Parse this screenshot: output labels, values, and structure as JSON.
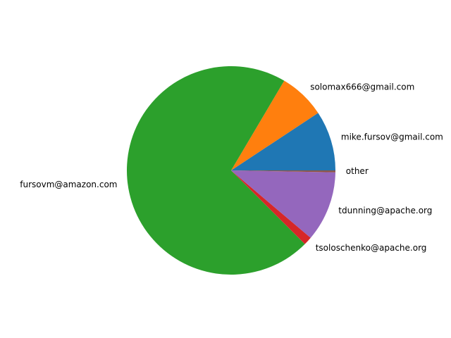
{
  "chart_data": {
    "type": "pie",
    "title": "",
    "slices": [
      {
        "label": "mike.fursov@gmail.com",
        "value": 9.3,
        "color": "#1f77b4"
      },
      {
        "label": "solomax666@gmail.com",
        "value": 7.2,
        "color": "#ff7f0e"
      },
      {
        "label": "fursovm@amazon.com",
        "value": 71.0,
        "color": "#2ca02c"
      },
      {
        "label": "tsoloschenko@apache.org",
        "value": 1.3,
        "color": "#d62728"
      },
      {
        "label": "tdunning@apache.org",
        "value": 10.9,
        "color": "#9467bd"
      },
      {
        "label": "other",
        "value": 0.3,
        "color": "#8c564b"
      }
    ],
    "start_angle_deg": 0,
    "direction": "counterclockwise"
  }
}
